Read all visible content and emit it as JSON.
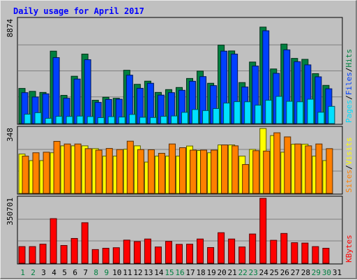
{
  "chart_data": {
    "type": "bar",
    "title": "Daily usage for April 2017",
    "categories": [
      "1",
      "2",
      "3",
      "4",
      "5",
      "6",
      "7",
      "8",
      "9",
      "10",
      "11",
      "12",
      "13",
      "14",
      "15",
      "16",
      "17",
      "18",
      "19",
      "20",
      "21",
      "22",
      "23",
      "24",
      "25",
      "26",
      "27",
      "28",
      "29",
      "30",
      "31"
    ],
    "weekend_days": [
      1,
      2,
      8,
      9,
      15,
      16,
      22,
      23,
      29,
      30
    ],
    "panels": [
      {
        "name": "hits-files-pages",
        "axis_max_label": "8874",
        "ymax": 8874,
        "legend": [
          {
            "label": "Pages",
            "color": "#00e0ff"
          },
          {
            "label": "Files",
            "color": "#0040ff"
          },
          {
            "label": "Hits",
            "color": "#008040"
          }
        ],
        "series": [
          {
            "name": "Hits",
            "color": "#008040",
            "values": [
              3000,
              2750,
              2660,
              6180,
              2410,
              4040,
              5930,
              1990,
              2250,
              2160,
              4550,
              3350,
              3620,
              2660,
              2900,
              3080,
              3850,
              4480,
              3440,
              6690,
              6200,
              3500,
              5250,
              8230,
              4660,
              6780,
              5560,
              5480,
              4260,
              3260,
              0
            ]
          },
          {
            "name": "Files",
            "color": "#0040ff",
            "values": [
              2640,
              2270,
              2540,
              5630,
              2160,
              3800,
              5450,
              1810,
              2060,
              2080,
              4130,
              3010,
              3440,
              2430,
              2640,
              2840,
              3610,
              4010,
              3240,
              6180,
              5930,
              3120,
              4910,
              7920,
              4290,
              6290,
              5280,
              5010,
              3990,
              2970,
              0
            ]
          },
          {
            "name": "Pages",
            "color": "#00e0ff",
            "values": [
              800,
              930,
              450,
              620,
              610,
              640,
              600,
              510,
              590,
              560,
              780,
              540,
              520,
              620,
              650,
              960,
              1200,
              1110,
              1280,
              1750,
              1870,
              1860,
              1570,
              1990,
              2320,
              1900,
              1860,
              2080,
              970,
              1470,
              0
            ]
          }
        ]
      },
      {
        "name": "visits-sites",
        "axis_max_label": "348",
        "ymax": 348,
        "legend": [
          {
            "label": "Sites",
            "color": "#ff8000"
          },
          {
            "label": "Visits",
            "color": "#ffff00"
          }
        ],
        "series": [
          {
            "name": "Visits",
            "color": "#ffff00",
            "values": [
              211,
              176,
              176,
              218,
              255,
              255,
              255,
              240,
              200,
              200,
              237,
              255,
              168,
              200,
              200,
              200,
              254,
              230,
              218,
              260,
              260,
              200,
              236,
              348,
              310,
              221,
              264,
              264,
              200,
              176,
              0
            ]
          },
          {
            "name": "Sites",
            "color": "#ff8000",
            "values": [
              200,
              218,
              221,
              279,
              265,
              265,
              240,
              232,
              241,
              235,
              280,
              235,
              234,
              215,
              265,
              245,
              232,
              232,
              232,
              260,
              255,
              155,
              229,
              227,
              325,
              303,
              265,
              255,
              265,
              240,
              0
            ]
          }
        ]
      },
      {
        "name": "kbytes",
        "axis_max_label": "350701",
        "ymax": 350701,
        "legend": [
          {
            "label": "KBytes",
            "color": "#ff0000"
          }
        ],
        "series": [
          {
            "name": "KBytes",
            "color": "#ff0000",
            "values": [
              90000,
              90000,
              103000,
              241000,
              96000,
              134000,
              219000,
              74000,
              81000,
              84000,
              125000,
              117000,
              131000,
              88000,
              118000,
              102000,
              103000,
              131000,
              85000,
              165000,
              131000,
              88000,
              158000,
              350701,
              124000,
              161000,
              111000,
              109000,
              90000,
              81000,
              0
            ]
          }
        ]
      }
    ]
  }
}
